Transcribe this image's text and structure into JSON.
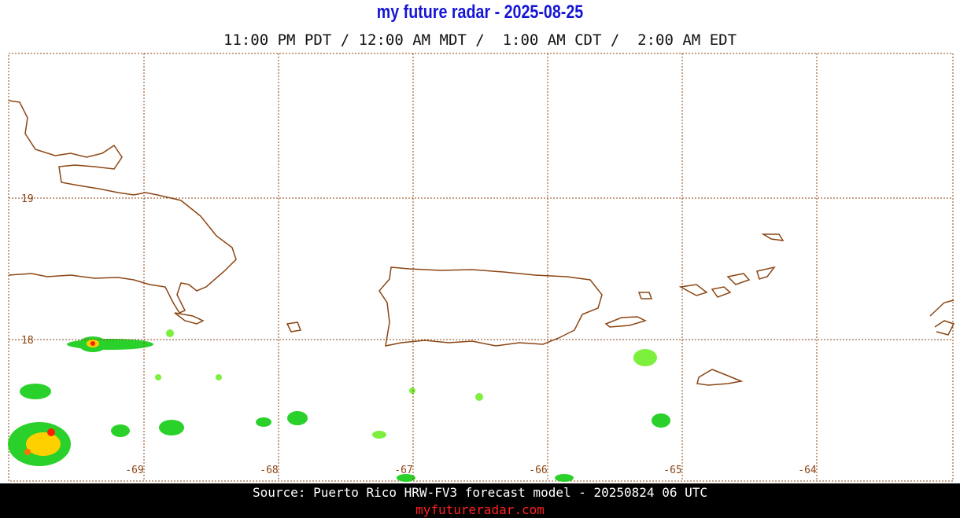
{
  "header": {
    "title": "my future radar - 2025-08-25",
    "subtitle": "11:00 PM PDT / 12:00 AM MDT /  1:00 AM CDT /  2:00 AM EDT"
  },
  "map": {
    "lon_ticks": [
      -69,
      -68,
      -67,
      -66,
      -65,
      -64
    ],
    "lat_ticks": [
      19,
      18
    ]
  },
  "footer": {
    "source": "Source: Puerto Rico HRW-FV3 forecast model - 20250824 06 UTC",
    "site": "myfutureradar.com"
  }
}
